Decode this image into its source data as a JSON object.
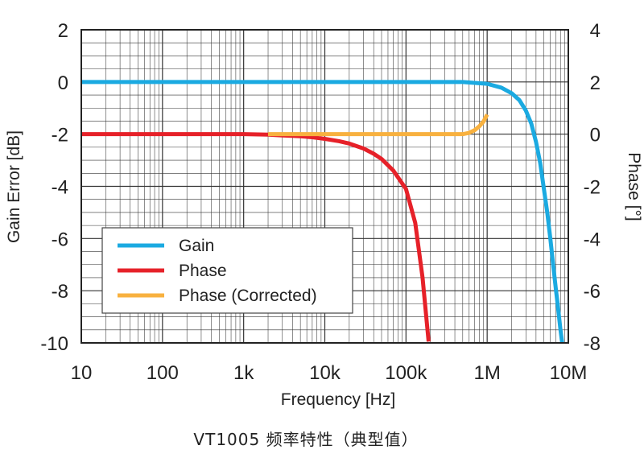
{
  "caption": "VT1005 频率特性（典型值）",
  "chart_data": {
    "type": "line",
    "xlabel": "Frequency [Hz]",
    "ylabel_left": "Gain Error [dB]",
    "ylabel_right": "Phase [°]",
    "x_scale": "log",
    "xlim": [
      10,
      10000000
    ],
    "ylim_left": [
      -10,
      2
    ],
    "ylim_right": [
      -8,
      4
    ],
    "x_ticks": [
      "10",
      "100",
      "1k",
      "10k",
      "100k",
      "1M",
      "10M"
    ],
    "y_left_ticks": [
      "2",
      "0",
      "-2",
      "-4",
      "-6",
      "-8",
      "-10"
    ],
    "y_right_ticks": [
      "4",
      "2",
      "0",
      "-2",
      "-4",
      "-6",
      "-8"
    ],
    "grid": true,
    "legend_position": "lower-left",
    "series": [
      {
        "name": "Gain",
        "axis": "left",
        "color": "#1BAAE1",
        "x": [
          10,
          100000,
          500000,
          1000000,
          1500000,
          2000000,
          2500000,
          3000000,
          3500000,
          4000000,
          4500000,
          5000000,
          5500000,
          6000000,
          6500000,
          7000000,
          7500000,
          8000000,
          8400000
        ],
        "y": [
          0,
          0,
          0,
          -0.07,
          -0.22,
          -0.43,
          -0.7,
          -1.1,
          -1.6,
          -2.3,
          -3.1,
          -4.1,
          -5.0,
          -6.0,
          -7.0,
          -7.9,
          -8.7,
          -9.5,
          -10
        ]
      },
      {
        "name": "Phase",
        "axis": "right",
        "color": "#E62129",
        "x": [
          10,
          1000,
          2000,
          3000,
          5000,
          7000,
          10000,
          15000,
          20000,
          30000,
          40000,
          50000,
          70000,
          100000,
          130000,
          160000,
          190000
        ],
        "y": [
          0,
          0,
          -0.02,
          -0.05,
          -0.08,
          -0.12,
          -0.18,
          -0.27,
          -0.36,
          -0.55,
          -0.75,
          -0.95,
          -1.4,
          -2.1,
          -3.4,
          -5.5,
          -7.95
        ]
      },
      {
        "name": "Phase (Corrected)",
        "axis": "right",
        "color": "#F8B13F",
        "x": [
          2000,
          500000,
          600000,
          700000,
          800000,
          900000,
          1000000
        ],
        "y": [
          0,
          0,
          0.05,
          0.15,
          0.3,
          0.48,
          0.75
        ]
      }
    ]
  }
}
